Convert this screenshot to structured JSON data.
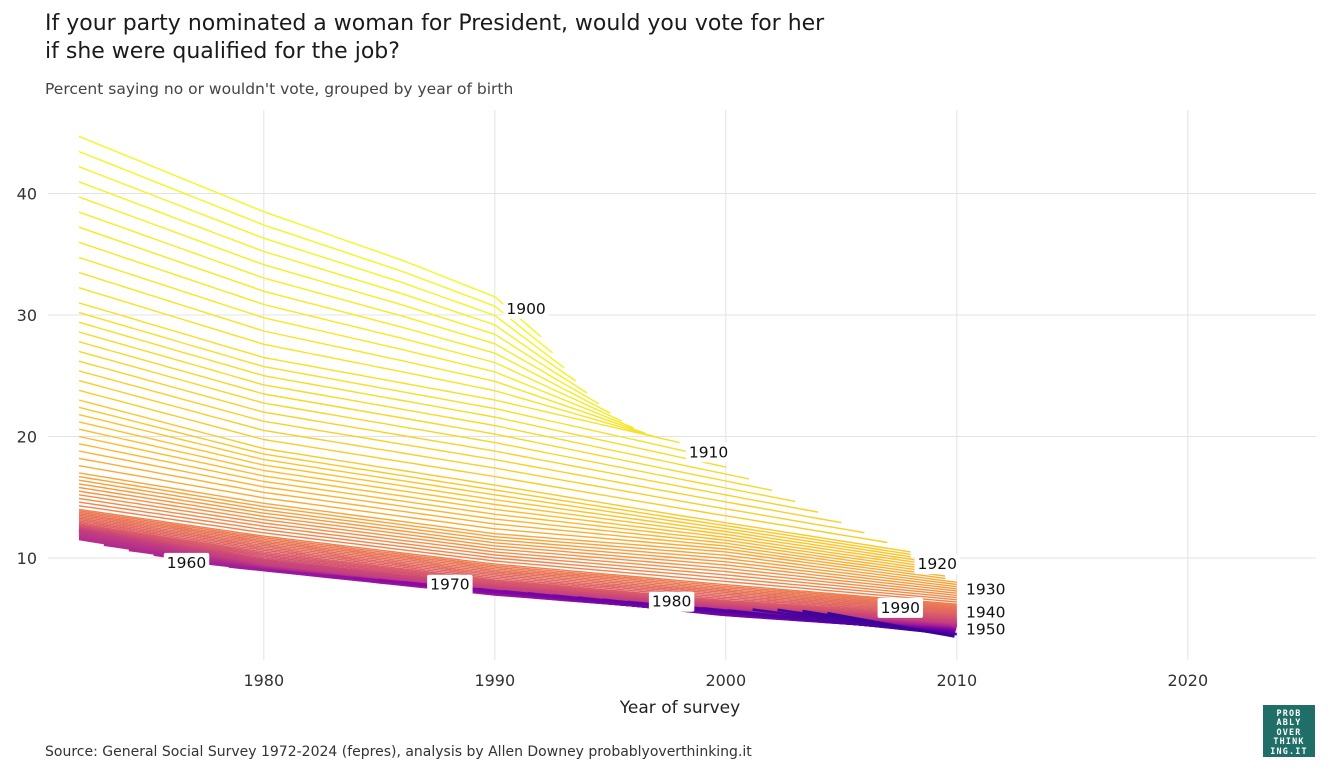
{
  "title_lines": [
    "If your party nominated a woman for President, would you vote for her",
    "if she were qualified for the job?"
  ],
  "subtitle": "Percent saying no or wouldn't vote, grouped by year of birth",
  "source": "Source: General Social Survey 1972-2024 (fepres), analysis by Allen Downey probablyoverthinking.it",
  "logo_lines": [
    "PROB",
    "ABLY",
    "OVER",
    "THINK",
    "ING.IT"
  ],
  "colors": {
    "gridline": "#e3e3e3",
    "palette": "plasma (purple #7b02a8 for later cohorts to yellow #f0f921 for earlier cohorts)",
    "logo_bg": "#1f6f68"
  },
  "chart_data": {
    "type": "line",
    "xlabel": "Year of survey",
    "ylabel": "",
    "xlim": [
      1971,
      2026
    ],
    "ylim": [
      1.5,
      46.5
    ],
    "x_ticks": [
      1980,
      1990,
      2000,
      2010,
      2020
    ],
    "y_ticks": [
      10,
      20,
      30,
      40
    ],
    "grid": true,
    "legend": "none",
    "cohort_first": 1899,
    "cohort_last": 1994,
    "series_anchors": [
      {
        "cohort": 1899,
        "x": [
          1972,
          1980,
          1986,
          1990,
          1992
        ],
        "y": [
          44.7,
          38.5,
          34.5,
          31.5,
          28.2
        ]
      },
      {
        "cohort": 1910,
        "x": [
          1972,
          1980,
          1990,
          1998
        ],
        "y": [
          31.0,
          26.5,
          23.0,
          19.5
        ]
      },
      {
        "cohort": 1920,
        "x": [
          1972,
          1980,
          1990,
          1998,
          2008
        ],
        "y": [
          23.0,
          19.0,
          16.0,
          13.5,
          10.5
        ]
      },
      {
        "cohort": 1930,
        "x": [
          1972,
          1980,
          1990,
          2000,
          2010
        ],
        "y": [
          17.0,
          14.5,
          12.0,
          10.5,
          8.0
        ]
      },
      {
        "cohort": 1940,
        "x": [
          1972,
          1980,
          1990,
          2000,
          2010
        ],
        "y": [
          14.0,
          11.8,
          9.5,
          7.8,
          6.2
        ]
      },
      {
        "cohort": 1950,
        "x": [
          1972,
          1980,
          1990,
          2000,
          2010
        ],
        "y": [
          12.8,
          10.5,
          8.2,
          6.5,
          5.3
        ]
      },
      {
        "cohort": 1960,
        "x": [
          1972,
          1980,
          1990,
          2000,
          2010
        ],
        "y": [
          12.2,
          9.3,
          7.3,
          5.8,
          4.5
        ]
      },
      {
        "cohort": 1970,
        "x": [
          1986,
          1990,
          2000,
          2010
        ],
        "y": [
          7.8,
          7.0,
          5.5,
          4.2
        ]
      },
      {
        "cohort": 1980,
        "x": [
          1996,
          2000,
          2010
        ],
        "y": [
          6.1,
          5.3,
          4.0
        ]
      },
      {
        "cohort": 1990,
        "x": [
          2006,
          2010
        ],
        "y": [
          4.5,
          3.7
        ]
      },
      {
        "cohort": 1994,
        "x": [
          2008,
          2010
        ],
        "y": [
          4.2,
          3.5
        ]
      }
    ],
    "labels": [
      {
        "text": "1900",
        "x": 1990.5,
        "y": 30.5
      },
      {
        "text": "1910",
        "x": 1998.4,
        "y": 18.7
      },
      {
        "text": "1920",
        "x": 2008.3,
        "y": 9.5
      },
      {
        "text": "1930",
        "x": 2010.4,
        "y": 7.4
      },
      {
        "text": "1940",
        "x": 2010.4,
        "y": 5.5
      },
      {
        "text": "1950",
        "x": 2010.4,
        "y": 4.1
      },
      {
        "text": "1960",
        "x": 1975.8,
        "y": 9.6
      },
      {
        "text": "1970",
        "x": 1987.2,
        "y": 7.8
      },
      {
        "text": "1980",
        "x": 1996.8,
        "y": 6.4
      },
      {
        "text": "1990",
        "x": 2006.7,
        "y": 5.9
      }
    ]
  }
}
